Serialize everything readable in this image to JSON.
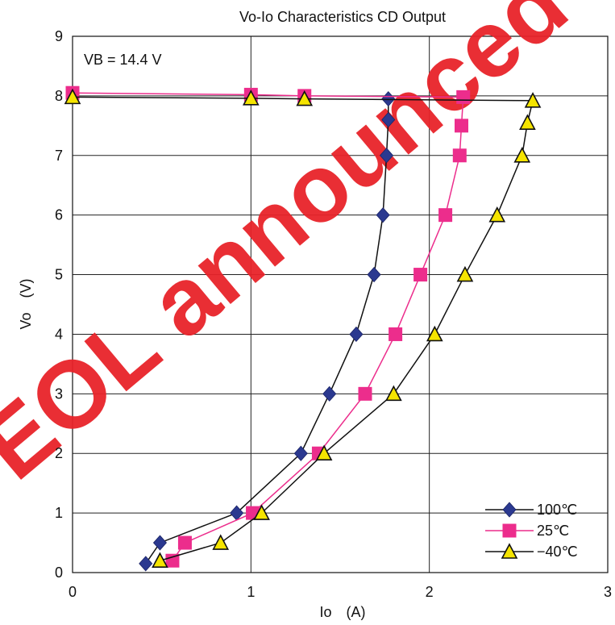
{
  "chart_data": {
    "type": "line",
    "title": "Vo-Io Characteristics  CD Output",
    "xlabel": "Io　(A)",
    "ylabel": "Vo　(V)",
    "xlim": [
      0,
      3
    ],
    "ylim": [
      0,
      9
    ],
    "xticks": [
      "0",
      "1",
      "2",
      "3"
    ],
    "yticks": [
      "0",
      "1",
      "2",
      "3",
      "4",
      "5",
      "6",
      "7",
      "8",
      "9"
    ],
    "grid": true,
    "legend_position": "bottom-right",
    "annotation": "VB = 14.4 V",
    "watermark": "EOL announced",
    "series": [
      {
        "name": "100℃",
        "marker": "diamond",
        "color": "#2b3990",
        "points": [
          [
            0.41,
            0.15
          ],
          [
            0.49,
            0.5
          ],
          [
            0.92,
            1.0
          ],
          [
            1.28,
            2.0
          ],
          [
            1.44,
            3.0
          ],
          [
            1.59,
            4.0
          ],
          [
            1.69,
            5.0
          ],
          [
            1.74,
            6.0
          ],
          [
            1.76,
            7.0
          ],
          [
            1.77,
            7.6
          ],
          [
            1.77,
            7.95
          ]
        ]
      },
      {
        "name": "25℃",
        "marker": "square",
        "color": "#ec2d8c",
        "points": [
          [
            0.0,
            8.05
          ],
          [
            1.0,
            8.02
          ],
          [
            1.3,
            8.0
          ],
          [
            2.19,
            7.98
          ],
          [
            2.18,
            7.5
          ],
          [
            2.17,
            7.0
          ],
          [
            2.09,
            6.0
          ],
          [
            1.95,
            5.0
          ],
          [
            1.81,
            4.0
          ],
          [
            1.64,
            3.0
          ],
          [
            1.38,
            2.0
          ],
          [
            1.01,
            1.0
          ],
          [
            0.63,
            0.5
          ],
          [
            0.56,
            0.2
          ]
        ]
      },
      {
        "name": "−40℃",
        "marker": "triangle",
        "color": "#f5e400",
        "points": [
          [
            0.0,
            7.98
          ],
          [
            1.0,
            7.96
          ],
          [
            1.3,
            7.95
          ],
          [
            2.58,
            7.92
          ],
          [
            2.55,
            7.55
          ],
          [
            2.52,
            7.0
          ],
          [
            2.38,
            6.0
          ],
          [
            2.2,
            5.0
          ],
          [
            2.03,
            4.0
          ],
          [
            1.8,
            3.0
          ],
          [
            1.41,
            2.0
          ],
          [
            1.06,
            1.0
          ],
          [
            0.83,
            0.5
          ],
          [
            0.49,
            0.2
          ]
        ]
      }
    ]
  }
}
